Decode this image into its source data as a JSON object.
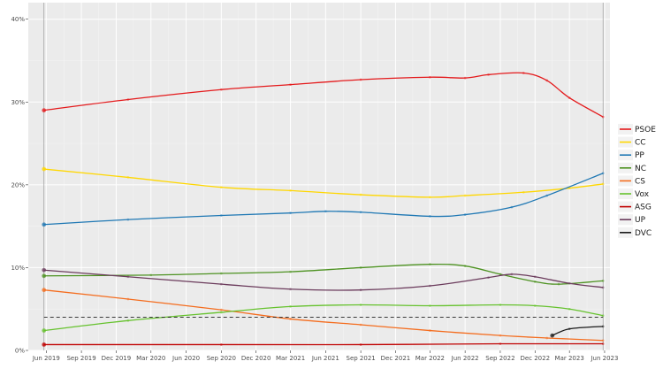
{
  "chart_data": {
    "type": "line",
    "title": "",
    "xlabel": "",
    "ylabel": "",
    "x_ticks": [
      "Jun 2019",
      "Sep 2019",
      "Dec 2019",
      "Mar 2020",
      "Jun 2020",
      "Sep 2020",
      "Dec 2020",
      "Mar 2021",
      "Jun 2021",
      "Sep 2021",
      "Dec 2021",
      "Mar 2022",
      "Jun 2022",
      "Sep 2022",
      "Dec 2022",
      "Mar 2023",
      "Jun 2023"
    ],
    "y_ticks": [
      "0%",
      "10%",
      "20%",
      "30%",
      "40%"
    ],
    "ylim": [
      0,
      42
    ],
    "xlim": [
      "2019-04-15",
      "2023-06-15"
    ],
    "threshold": 4,
    "grid": true,
    "legend_position": "right",
    "series": [
      {
        "name": "PSOE",
        "color": "#e41a1c",
        "points": [
          [
            "2019-05-26",
            29
          ],
          [
            "2020-01-01",
            30.3
          ],
          [
            "2020-09-01",
            31.5
          ],
          [
            "2021-03-01",
            32.1
          ],
          [
            "2021-09-01",
            32.7
          ],
          [
            "2022-03-01",
            33
          ],
          [
            "2022-06-01",
            32.9
          ],
          [
            "2022-08-01",
            33.3
          ],
          [
            "2022-11-01",
            33.5
          ],
          [
            "2023-01-01",
            32.6
          ],
          [
            "2023-03-01",
            30.5
          ],
          [
            "2023-05-28",
            28.2
          ]
        ]
      },
      {
        "name": "CC",
        "color": "#ffd700",
        "points": [
          [
            "2019-05-26",
            21.9
          ],
          [
            "2020-01-01",
            20.9
          ],
          [
            "2020-09-01",
            19.7
          ],
          [
            "2021-03-01",
            19.3
          ],
          [
            "2021-09-01",
            18.8
          ],
          [
            "2022-03-01",
            18.5
          ],
          [
            "2022-06-01",
            18.7
          ],
          [
            "2022-11-01",
            19.1
          ],
          [
            "2023-03-01",
            19.6
          ],
          [
            "2023-05-28",
            20.1
          ]
        ]
      },
      {
        "name": "PP",
        "color": "#1f78b4",
        "points": [
          [
            "2019-05-26",
            15.2
          ],
          [
            "2020-01-01",
            15.8
          ],
          [
            "2020-09-01",
            16.3
          ],
          [
            "2021-03-01",
            16.6
          ],
          [
            "2021-06-01",
            16.8
          ],
          [
            "2021-09-01",
            16.7
          ],
          [
            "2022-03-01",
            16.2
          ],
          [
            "2022-06-01",
            16.4
          ],
          [
            "2022-10-01",
            17.3
          ],
          [
            "2023-01-01",
            18.7
          ],
          [
            "2023-05-28",
            21.4
          ]
        ]
      },
      {
        "name": "NC",
        "color": "#4d9221",
        "points": [
          [
            "2019-05-26",
            9
          ],
          [
            "2020-03-01",
            9.1
          ],
          [
            "2020-09-01",
            9.3
          ],
          [
            "2021-03-01",
            9.5
          ],
          [
            "2021-09-01",
            10
          ],
          [
            "2022-03-01",
            10.4
          ],
          [
            "2022-06-01",
            10.2
          ],
          [
            "2022-09-01",
            9.2
          ],
          [
            "2022-12-01",
            8.3
          ],
          [
            "2023-02-01",
            8
          ],
          [
            "2023-05-28",
            8.4
          ]
        ]
      },
      {
        "name": "CS",
        "color": "#f46d1f",
        "points": [
          [
            "2019-05-26",
            7.3
          ],
          [
            "2020-01-01",
            6.2
          ],
          [
            "2020-09-01",
            4.9
          ],
          [
            "2021-03-01",
            3.8
          ],
          [
            "2021-09-01",
            3.1
          ],
          [
            "2022-03-01",
            2.4
          ],
          [
            "2022-09-01",
            1.8
          ],
          [
            "2023-01-01",
            1.5
          ],
          [
            "2023-05-28",
            1.2
          ]
        ]
      },
      {
        "name": "Vox",
        "color": "#66c22e",
        "points": [
          [
            "2019-05-26",
            2.4
          ],
          [
            "2020-01-01",
            3.6
          ],
          [
            "2020-09-01",
            4.6
          ],
          [
            "2021-03-01",
            5.3
          ],
          [
            "2021-09-01",
            5.5
          ],
          [
            "2022-03-01",
            5.4
          ],
          [
            "2022-09-01",
            5.5
          ],
          [
            "2022-12-01",
            5.4
          ],
          [
            "2023-03-01",
            5
          ],
          [
            "2023-05-28",
            4.2
          ]
        ]
      },
      {
        "name": "ASG",
        "color": "#c00000",
        "points": [
          [
            "2019-05-26",
            0.7
          ],
          [
            "2020-09-01",
            0.7
          ],
          [
            "2021-09-01",
            0.7
          ],
          [
            "2022-09-01",
            0.8
          ],
          [
            "2023-05-28",
            0.8
          ]
        ]
      },
      {
        "name": "UP",
        "color": "#6b3b5c",
        "points": [
          [
            "2019-05-26",
            9.7
          ],
          [
            "2020-01-01",
            8.9
          ],
          [
            "2020-09-01",
            8
          ],
          [
            "2021-03-01",
            7.4
          ],
          [
            "2021-09-01",
            7.3
          ],
          [
            "2022-03-01",
            7.8
          ],
          [
            "2022-08-01",
            8.8
          ],
          [
            "2022-10-01",
            9.2
          ],
          [
            "2022-12-01",
            8.9
          ],
          [
            "2023-03-01",
            8.1
          ],
          [
            "2023-05-28",
            7.6
          ]
        ]
      },
      {
        "name": "DVC",
        "color": "#1a1a1a",
        "points": [
          [
            "2023-01-15",
            1.8
          ],
          [
            "2023-03-01",
            2.6
          ],
          [
            "2023-05-28",
            2.9
          ]
        ]
      }
    ]
  }
}
